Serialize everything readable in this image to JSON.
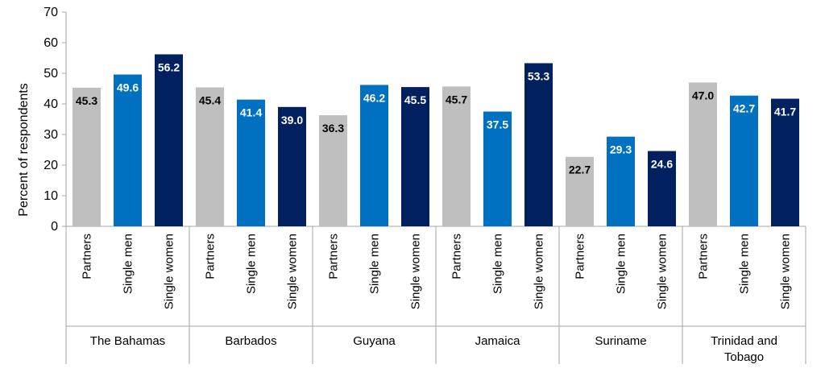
{
  "chart_data": {
    "type": "bar",
    "ylabel": "Percent of respondents",
    "xlabel": "",
    "title": "",
    "ylim": [
      0,
      70
    ],
    "yticks": [
      0,
      10,
      20,
      30,
      40,
      50,
      60,
      70
    ],
    "grid": false,
    "groups": [
      {
        "name": [
          "The Bahamas"
        ],
        "values": [
          45.3,
          49.6,
          56.2
        ]
      },
      {
        "name": [
          "Barbados"
        ],
        "values": [
          45.4,
          41.4,
          39.0
        ]
      },
      {
        "name": [
          "Guyana"
        ],
        "values": [
          36.3,
          46.2,
          45.5
        ]
      },
      {
        "name": [
          "Jamaica"
        ],
        "values": [
          45.7,
          37.5,
          53.3
        ]
      },
      {
        "name": [
          "Suriname"
        ],
        "values": [
          22.7,
          29.3,
          24.6
        ]
      },
      {
        "name": [
          "Trinidad and",
          "Tobago"
        ],
        "values": [
          47.0,
          42.7,
          41.7
        ]
      }
    ],
    "series": [
      {
        "name": "Partners",
        "color": "#bfbfbf",
        "label_color": "#000000"
      },
      {
        "name": "Single men",
        "color": "#0070c0",
        "label_color": "#ffffff"
      },
      {
        "name": "Single women",
        "color": "#002060",
        "label_color": "#ffffff"
      }
    ]
  }
}
